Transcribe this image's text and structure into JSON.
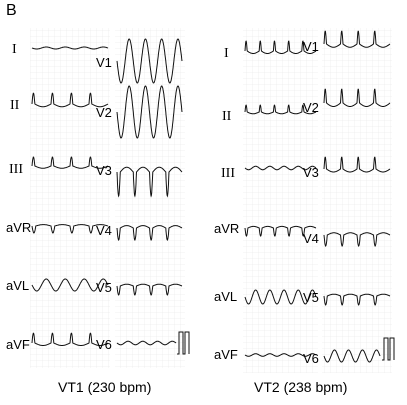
{
  "panel_label": "B",
  "vt1": {
    "caption": "VT1 (230 bpm)",
    "limb_leads": [
      "I",
      "II",
      "III",
      "aVR",
      "aVL",
      "aVF"
    ],
    "precordial_leads": [
      "V1",
      "V2",
      "V3",
      "V4",
      "V5",
      "V6"
    ]
  },
  "vt2": {
    "caption": "VT2 (238 bpm)",
    "limb_leads": [
      "I",
      "II",
      "III",
      "aVR",
      "aVL",
      "aVF"
    ],
    "precordial_leads": [
      "V1",
      "V2",
      "V3",
      "V4",
      "V5",
      "V6"
    ]
  },
  "colors": {
    "trace": "#111111",
    "grid_minor": "#e4e4e4",
    "grid_major": "#cfcfcf"
  }
}
